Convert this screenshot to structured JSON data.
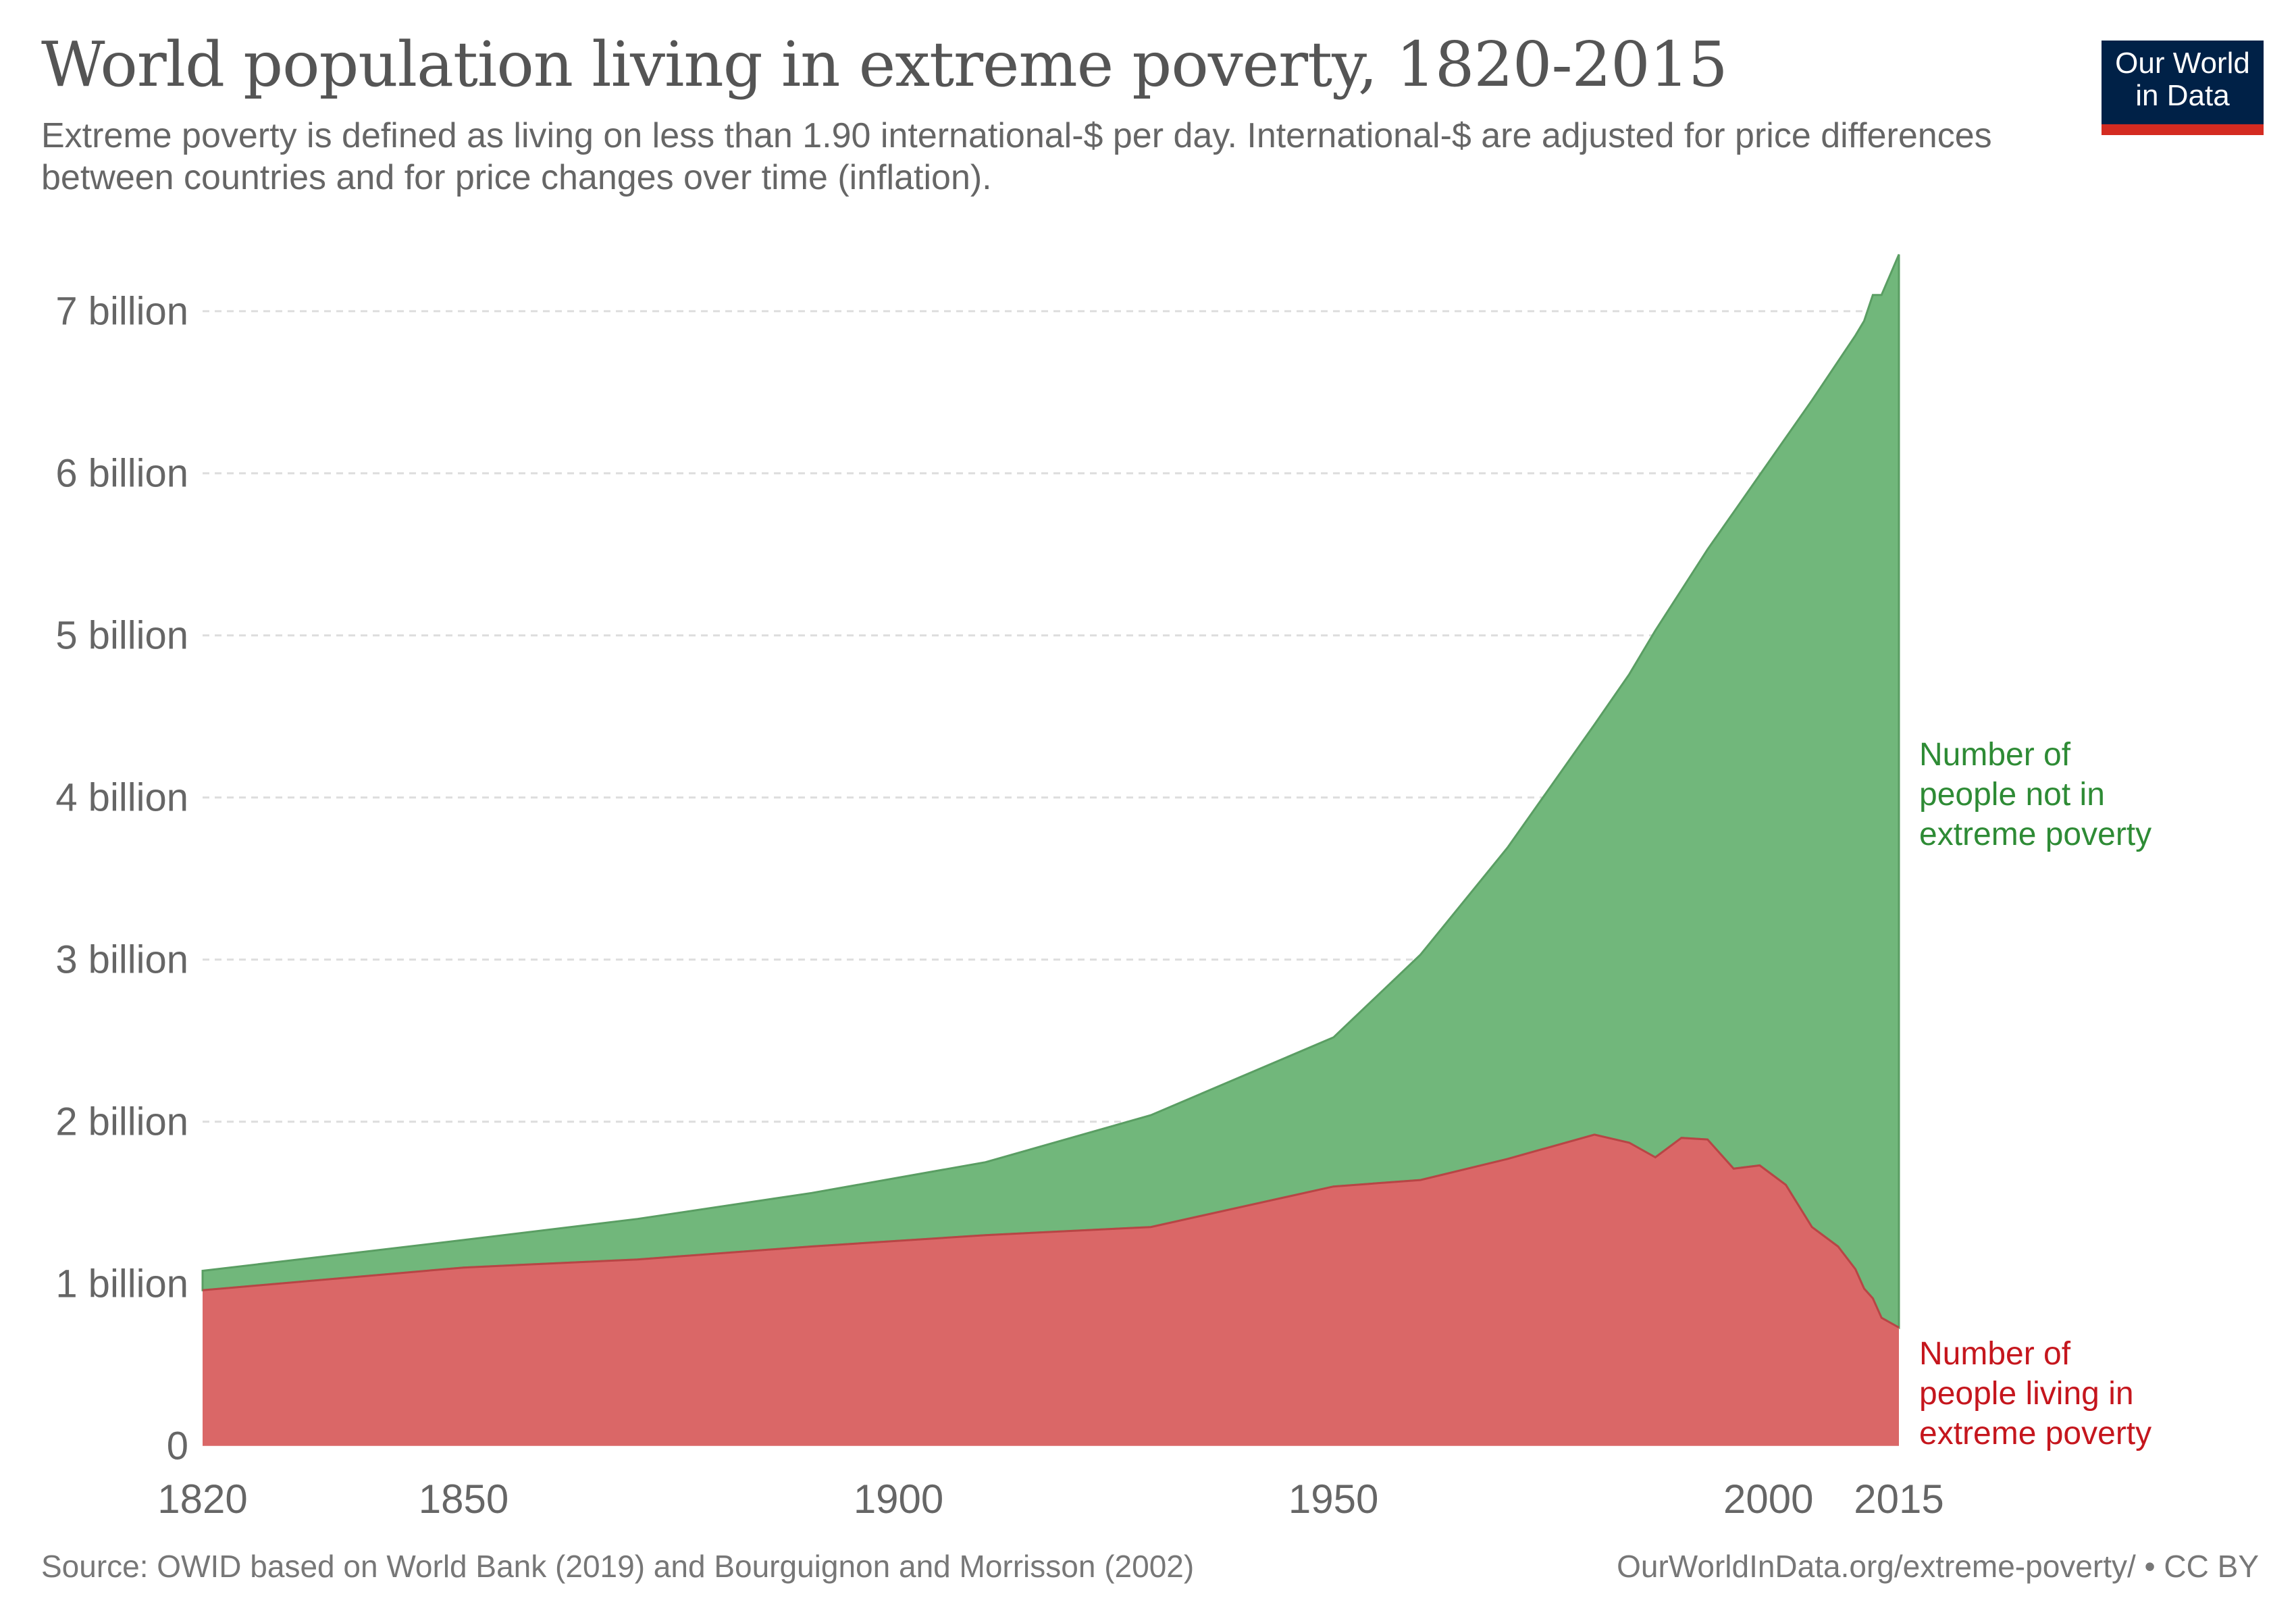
{
  "header": {
    "title": "World population living in extreme poverty, 1820-2015",
    "subtitle": "Extreme poverty is defined as living on less than 1.90 international-$ per day. International-$ are adjusted for price differences between countries and for price changes over time (inflation).",
    "logo": "Our World in Data"
  },
  "footer": {
    "source": "Source: OWID based on World Bank (2019) and Bourguignon and Morrisson (2002)",
    "credit": "OurWorldInData.org/extreme-poverty/ • CC BY"
  },
  "colors": {
    "not_in_poverty": "#71b77b",
    "in_poverty": "#da6767",
    "not_in_poverty_label": "#2e8b35",
    "in_poverty_label": "#c5161d",
    "logo_bg": "#002147",
    "logo_bar": "#d42b21"
  },
  "chart_data": {
    "type": "area",
    "stacked": true,
    "title": "World population living in extreme poverty, 1820-2015",
    "xlabel": "",
    "ylabel": "",
    "xlim": [
      1820,
      2015
    ],
    "ylim": [
      0,
      7500000000
    ],
    "grid": "horizontal dashed",
    "x_ticks": [
      "1820",
      "1850",
      "1900",
      "1950",
      "2000",
      "2015"
    ],
    "x_tick_values": [
      1820,
      1850,
      1900,
      1950,
      2000,
      2015
    ],
    "y_ticks": [
      "0",
      "1 billion",
      "2 billion",
      "3 billion",
      "4 billion",
      "5 billion",
      "6 billion",
      "7 billion"
    ],
    "y_tick_values": [
      0,
      1000000000,
      2000000000,
      3000000000,
      4000000000,
      5000000000,
      6000000000,
      7000000000
    ],
    "legend": "inline-right",
    "x": [
      1820,
      1850,
      1870,
      1890,
      1910,
      1929,
      1950,
      1960,
      1970,
      1980,
      1984,
      1987,
      1990,
      1993,
      1996,
      1999,
      2002,
      2005,
      2008,
      2010,
      2011,
      2012,
      2013,
      2015
    ],
    "series": [
      {
        "name": "Number of people living in extreme poverty",
        "values": [
          960000000.0,
          1100000000.0,
          1150000000.0,
          1230000000.0,
          1300000000.0,
          1350000000.0,
          1600000000.0,
          1640000000.0,
          1770000000.0,
          1920000000.0,
          1870000000.0,
          1780000000.0,
          1900000000.0,
          1890000000.0,
          1710000000.0,
          1730000000.0,
          1610000000.0,
          1350000000.0,
          1230000000.0,
          1090000000.0,
          970000000.0,
          910000000.0,
          790000000.0,
          730000000.0
        ]
      },
      {
        "name": "Number of people not in extreme poverty",
        "values": [
          120000000.0,
          170000000.0,
          250000000.0,
          330000000.0,
          450000000.0,
          690000000.0,
          920000000.0,
          1390000000.0,
          1920000000.0,
          2530000000.0,
          2890000000.0,
          3250000000.0,
          3380000000.0,
          3640000000.0,
          4050000000.0,
          4260000000.0,
          4610000000.0,
          5100000000.0,
          5460000000.0,
          5760000000.0,
          5970000000.0,
          6190000000.0,
          6310000000.0,
          6620000000.0
        ]
      }
    ],
    "series_labels": {
      "not_in_poverty": [
        "Number of",
        "people not in",
        "extreme poverty"
      ],
      "in_poverty": [
        "Number of",
        "people living in",
        "extreme poverty"
      ]
    }
  }
}
